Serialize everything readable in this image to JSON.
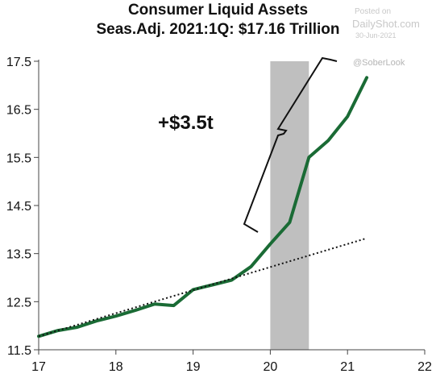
{
  "chart_data": {
    "type": "line",
    "title": "Consumer Liquid Assets",
    "subtitle": "Seas.Adj.  2021:1Q: $17.16 Trillion",
    "xlabel": "",
    "ylabel": "",
    "xlim": [
      17,
      22
    ],
    "ylim": [
      11.5,
      17.5
    ],
    "x_ticks": [
      17,
      18,
      19,
      20,
      21,
      22
    ],
    "x_tick_labels": [
      "17",
      "18",
      "19",
      "20",
      "21",
      "22"
    ],
    "y_ticks": [
      11.5,
      12.5,
      13.5,
      14.5,
      15.5,
      16.5,
      17.5
    ],
    "y_tick_labels": [
      "11.5",
      "12.5",
      "13.5",
      "14.5",
      "15.5",
      "16.5",
      "17.5"
    ],
    "grid": false,
    "legend": "none",
    "shaded_region": {
      "x_start": 20.0,
      "x_end": 20.5,
      "color": "#bfbfbf"
    },
    "series": [
      {
        "color": "#1a6b35",
        "style": "solid",
        "x": [
          17.0,
          17.25,
          17.5,
          17.75,
          18.0,
          18.25,
          18.5,
          18.75,
          19.0,
          19.25,
          19.5,
          19.75,
          20.0,
          20.25,
          20.5,
          20.75,
          21.0,
          21.25
        ],
        "y": [
          11.78,
          11.9,
          11.97,
          12.1,
          12.2,
          12.32,
          12.45,
          12.42,
          12.75,
          12.85,
          12.95,
          13.23,
          13.7,
          14.15,
          15.5,
          15.85,
          16.35,
          17.16
        ]
      },
      {
        "color": "#111111",
        "style": "dotted",
        "x": [
          17.0,
          21.25
        ],
        "y": [
          11.78,
          13.82
        ]
      }
    ],
    "annotations": [
      {
        "text": "+$3.5t"
      }
    ]
  },
  "watermark": {
    "posted_label": "Posted on",
    "site": "DailyShot.com",
    "date": "30-Jun-2021",
    "handle": "@SoberLook"
  }
}
